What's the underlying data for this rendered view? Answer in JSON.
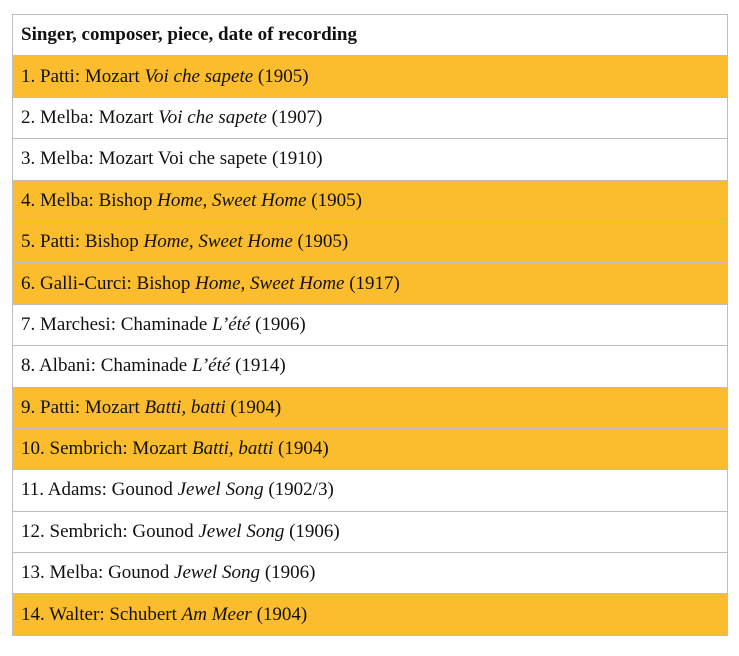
{
  "header": "Singer, composer, piece, date of recording",
  "highlight_color": "#fbbc2d",
  "rows": [
    {
      "pre": "1. Patti: Mozart ",
      "title": "Voi che sapete",
      "post": " (1905)",
      "highlighted": true
    },
    {
      "pre": "2. Melba: Mozart ",
      "title": "Voi che sapete",
      "post": " (1907)",
      "highlighted": false
    },
    {
      "pre": "3. Melba: Mozart Voi che sapete (1910)",
      "title": "",
      "post": "",
      "highlighted": false
    },
    {
      "pre": "4. Melba: Bishop ",
      "title": "Home, Sweet Home",
      "post": " (1905)",
      "highlighted": true
    },
    {
      "pre": "5. Patti: Bishop ",
      "title": "Home, Sweet Home",
      "post": " (1905)",
      "highlighted": true
    },
    {
      "pre": "6. Galli-Curci: Bishop ",
      "title": "Home, Sweet Home",
      "post": " (1917)",
      "highlighted": true
    },
    {
      "pre": "7. Marchesi: Chaminade ",
      "title": "L’été",
      "post": " (1906)",
      "highlighted": false
    },
    {
      "pre": "8. Albani: Chaminade ",
      "title": "L’été",
      "post": " (1914)",
      "highlighted": false
    },
    {
      "pre": "9. Patti: Mozart ",
      "title": "Batti, batti",
      "post": " (1904)",
      "highlighted": true
    },
    {
      "pre": "10. Sembrich: Mozart ",
      "title": "Batti, batti",
      "post": " (1904)",
      "highlighted": true
    },
    {
      "pre": "11. Adams: Gounod ",
      "title": "Jewel Song",
      "post": " (1902/3)",
      "highlighted": false
    },
    {
      "pre": "12. Sembrich: Gounod ",
      "title": "Jewel Song",
      "post": " (1906)",
      "highlighted": false
    },
    {
      "pre": "13. Melba: Gounod ",
      "title": "Jewel Song",
      "post": " (1906)",
      "highlighted": false
    },
    {
      "pre": "14. Walter: Schubert ",
      "title": "Am Meer",
      "post": " (1904)",
      "highlighted": true
    }
  ]
}
